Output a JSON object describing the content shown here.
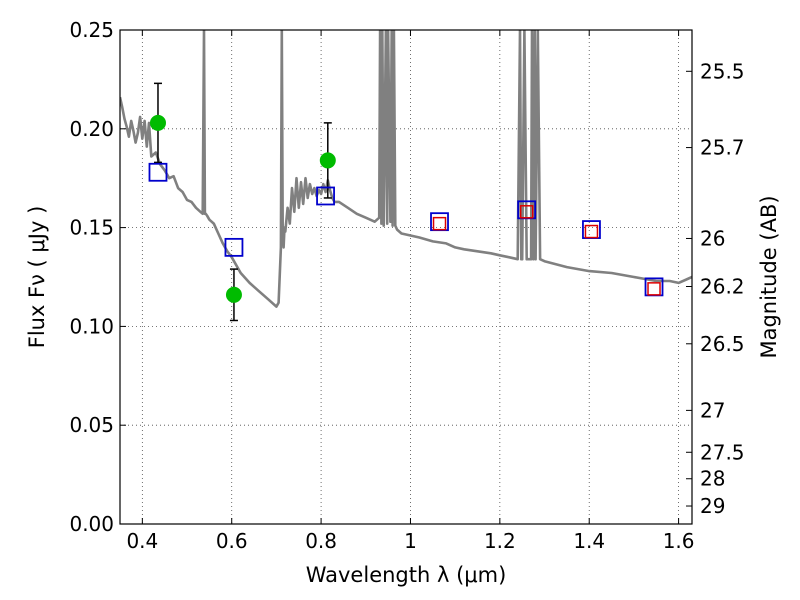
{
  "chart_data": {
    "type": "scatter",
    "title": "",
    "xlabel": "Wavelength  λ (μm)",
    "ylabel": "Flux  Fν  ( μJy )",
    "ylabel_right": "Magnitude (AB)",
    "xlim": [
      0.35,
      1.63
    ],
    "ylim": [
      0.0,
      0.25
    ],
    "grid": true,
    "legend": "none",
    "x_ticks": [
      0.4,
      0.6,
      0.8,
      1.0,
      1.2,
      1.4,
      1.6
    ],
    "x_tick_labels": [
      "0.4",
      "0.6",
      "0.8",
      "1",
      "1.2",
      "1.4",
      "1.6"
    ],
    "y_ticks": [
      0.0,
      0.05,
      0.1,
      0.15,
      0.2,
      0.25
    ],
    "y_tick_labels": [
      "0.00",
      "0.05",
      "0.10",
      "0.15",
      "0.20",
      "0.25"
    ],
    "right_axis": {
      "labels": [
        "25.5",
        "25.7",
        "26",
        "26.2",
        "26.5",
        "27",
        "27.5",
        "28",
        "29"
      ],
      "magnitudes": [
        25.5,
        25.7,
        26.0,
        26.2,
        26.5,
        27.0,
        27.5,
        28.0,
        29.0
      ],
      "flux_positions": [
        0.2291,
        0.1905,
        0.1445,
        0.1202,
        0.0912,
        0.0575,
        0.0363,
        0.0229,
        0.0091
      ]
    },
    "series": [
      {
        "type": "line",
        "color": "#808080",
        "x": [
          0.35,
          0.355,
          0.36,
          0.365,
          0.37,
          0.375,
          0.38,
          0.385,
          0.39,
          0.395,
          0.4,
          0.405,
          0.41,
          0.415,
          0.42,
          0.43,
          0.44,
          0.45,
          0.46,
          0.47,
          0.48,
          0.49,
          0.5,
          0.51,
          0.52,
          0.53,
          0.535,
          0.538,
          0.54,
          0.542,
          0.545,
          0.55,
          0.56,
          0.57,
          0.58,
          0.59,
          0.6,
          0.62,
          0.64,
          0.66,
          0.68,
          0.7,
          0.705,
          0.71,
          0.712,
          0.714,
          0.716,
          0.718,
          0.72,
          0.725,
          0.73,
          0.735,
          0.74,
          0.745,
          0.75,
          0.755,
          0.76,
          0.765,
          0.77,
          0.775,
          0.78,
          0.785,
          0.79,
          0.795,
          0.8,
          0.805,
          0.81,
          0.815,
          0.82,
          0.825,
          0.83,
          0.84,
          0.86,
          0.88,
          0.9,
          0.92,
          0.93,
          0.932,
          0.935,
          0.937,
          0.94,
          0.945,
          0.948,
          0.95,
          0.955,
          0.958,
          0.96,
          0.963,
          0.966,
          0.97,
          0.98,
          1.0,
          1.02,
          1.05,
          1.08,
          1.1,
          1.12,
          1.15,
          1.18,
          1.2,
          1.22,
          1.24,
          1.245,
          1.248,
          1.25,
          1.255,
          1.26,
          1.265,
          1.27,
          1.272,
          1.275,
          1.278,
          1.28,
          1.285,
          1.29,
          1.3,
          1.35,
          1.4,
          1.45,
          1.5,
          1.55,
          1.58,
          1.6,
          1.62,
          1.63
        ],
        "y": [
          0.216,
          0.211,
          0.205,
          0.201,
          0.196,
          0.204,
          0.199,
          0.193,
          0.198,
          0.206,
          0.195,
          0.204,
          0.191,
          0.203,
          0.186,
          0.188,
          0.182,
          0.179,
          0.175,
          0.176,
          0.17,
          0.168,
          0.164,
          0.163,
          0.16,
          0.158,
          0.157,
          0.25,
          0.157,
          0.157,
          0.156,
          0.154,
          0.152,
          0.147,
          0.142,
          0.138,
          0.135,
          0.127,
          0.122,
          0.118,
          0.114,
          0.11,
          0.112,
          0.14,
          0.25,
          0.15,
          0.14,
          0.15,
          0.148,
          0.16,
          0.152,
          0.17,
          0.158,
          0.175,
          0.16,
          0.173,
          0.162,
          0.175,
          0.165,
          0.172,
          0.167,
          0.17,
          0.166,
          0.169,
          0.167,
          0.172,
          0.168,
          0.174,
          0.169,
          0.165,
          0.163,
          0.163,
          0.16,
          0.157,
          0.155,
          0.153,
          0.155,
          0.25,
          0.152,
          0.25,
          0.151,
          0.25,
          0.152,
          0.25,
          0.153,
          0.25,
          0.151,
          0.25,
          0.151,
          0.149,
          0.147,
          0.146,
          0.145,
          0.143,
          0.142,
          0.14,
          0.139,
          0.138,
          0.137,
          0.136,
          0.135,
          0.134,
          0.25,
          0.134,
          0.134,
          0.25,
          0.134,
          0.134,
          0.134,
          0.25,
          0.134,
          0.25,
          0.134,
          0.25,
          0.134,
          0.133,
          0.13,
          0.128,
          0.127,
          0.125,
          0.123,
          0.123,
          0.122,
          0.124,
          0.125
        ]
      },
      {
        "type": "points_with_errors",
        "color": "#00bb00",
        "marker": "circle",
        "x": [
          0.435,
          0.605,
          0.815
        ],
        "y": [
          0.203,
          0.116,
          0.184
        ],
        "yerr": [
          0.02,
          0.013,
          0.019
        ]
      },
      {
        "type": "points",
        "color": "#0000cc",
        "marker": "open-square",
        "x": [
          0.435,
          0.605,
          0.81,
          1.065,
          1.26,
          1.405,
          1.545
        ],
        "y": [
          0.178,
          0.14,
          0.166,
          0.153,
          0.159,
          0.149,
          0.12
        ]
      },
      {
        "type": "points",
        "color": "#dd0000",
        "marker": "open-square-small",
        "x": [
          1.065,
          1.26,
          1.405,
          1.545
        ],
        "y": [
          0.152,
          0.158,
          0.148,
          0.119
        ]
      }
    ]
  }
}
